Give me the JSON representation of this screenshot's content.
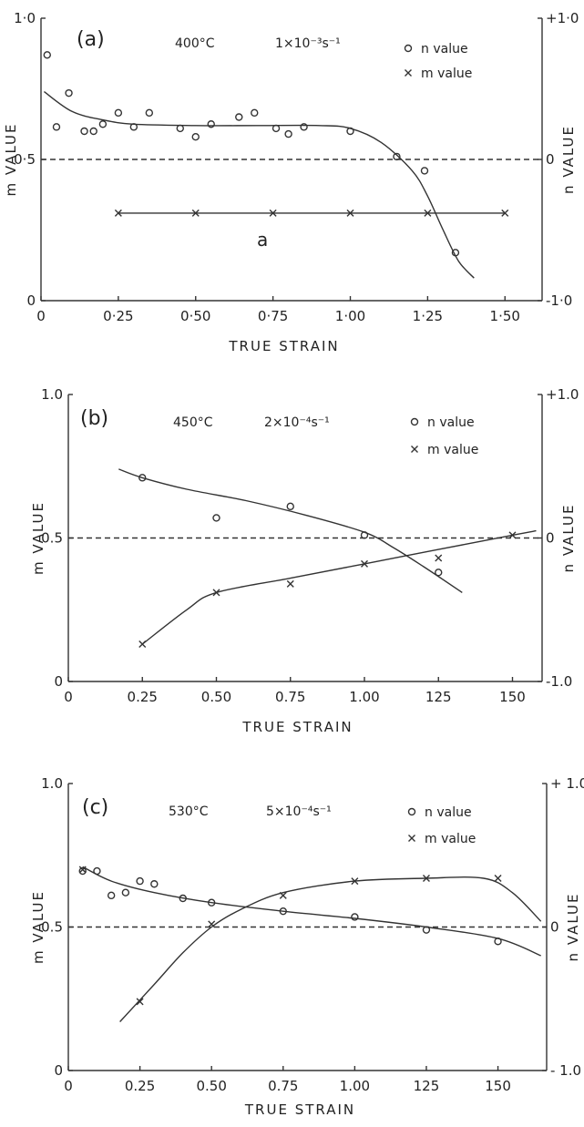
{
  "chart_data": [
    {
      "type": "scatter",
      "panel_label": "(a)",
      "conditions": {
        "temperature": "400°C",
        "strain_rate": "1×10⁻³s⁻¹"
      },
      "xlabel": "TRUE STRAIN",
      "ylabel": "m VALUE",
      "y2label": "n VALUE",
      "xlim": [
        0,
        1.62
      ],
      "ylim": [
        0,
        1.0
      ],
      "y2lim": [
        -1.0,
        1.0
      ],
      "xticks": [
        "0",
        "0·25",
        "0·50",
        "0·75",
        "1·00",
        "1·25",
        "1·50"
      ],
      "xtick_values": [
        0,
        0.25,
        0.5,
        0.75,
        1.0,
        1.25,
        1.5
      ],
      "yticks": [
        "0",
        "0·5",
        "1·0"
      ],
      "y2ticks": [
        "-1·0",
        "0",
        "+1·0"
      ],
      "curve_label": "a",
      "reference_line_y": 0.5,
      "legend": [
        {
          "marker": "o",
          "label": "n  value"
        },
        {
          "marker": "×",
          "label": "m  value"
        }
      ],
      "series": [
        {
          "marker": "o",
          "axis": "n",
          "x": [
            0.02,
            0.05,
            0.09,
            0.14,
            0.17,
            0.2,
            0.25,
            0.3,
            0.35,
            0.45,
            0.5,
            0.55,
            0.64,
            0.69,
            0.76,
            0.8,
            0.85,
            1.0,
            1.15,
            1.24,
            1.34
          ],
          "y": [
            0.74,
            0.23,
            0.47,
            0.2,
            0.2,
            0.25,
            0.33,
            0.23,
            0.33,
            0.22,
            0.16,
            0.25,
            0.3,
            0.33,
            0.22,
            0.18,
            0.23,
            0.2,
            0.02,
            -0.08,
            -0.66
          ]
        },
        {
          "marker": "×",
          "axis": "m",
          "x": [
            0.25,
            0.5,
            0.75,
            1.0,
            1.25,
            1.5
          ],
          "y": [
            0.31,
            0.31,
            0.31,
            0.31,
            0.31,
            0.31
          ]
        }
      ],
      "fit_curves": [
        {
          "axis": "n",
          "x": [
            0.01,
            0.1,
            0.2,
            0.3,
            0.5,
            0.7,
            0.9,
            1.0,
            1.1,
            1.2,
            1.25,
            1.3,
            1.35,
            1.4
          ],
          "y": [
            0.48,
            0.34,
            0.28,
            0.25,
            0.24,
            0.24,
            0.24,
            0.22,
            0.12,
            -0.08,
            -0.26,
            -0.5,
            -0.72,
            -0.84
          ]
        },
        {
          "axis": "m",
          "x": [
            0.25,
            1.5
          ],
          "y": [
            0.31,
            0.31
          ]
        }
      ]
    },
    {
      "type": "scatter",
      "panel_label": "(b)",
      "conditions": {
        "temperature": "450°C",
        "strain_rate": "2×10⁻⁴s⁻¹"
      },
      "xlabel": "TRUE STRAIN",
      "ylabel": "m VALUE",
      "y2label": "n VALUE",
      "xlim": [
        0,
        1.6
      ],
      "ylim": [
        0,
        1.0
      ],
      "y2lim": [
        -1.0,
        1.0
      ],
      "xticks": [
        "0",
        "0.25",
        "0.50",
        "0.75",
        "1.00",
        "125",
        "150"
      ],
      "xtick_values": [
        0,
        0.25,
        0.5,
        0.75,
        1.0,
        1.25,
        1.5
      ],
      "yticks": [
        "0",
        "0.5",
        "1.0"
      ],
      "y2ticks": [
        "-1.0",
        "0",
        "+1.0"
      ],
      "reference_line_y": 0.5,
      "legend": [
        {
          "marker": "o",
          "label": "n  value"
        },
        {
          "marker": "x",
          "label": "m  value"
        }
      ],
      "series": [
        {
          "marker": "o",
          "axis": "n",
          "x": [
            0.25,
            0.5,
            0.75,
            1.0,
            1.25
          ],
          "y": [
            0.42,
            0.14,
            0.22,
            0.02,
            -0.24
          ]
        },
        {
          "marker": "x",
          "axis": "m",
          "x": [
            0.25,
            0.5,
            0.75,
            1.0,
            1.25,
            1.5
          ],
          "y": [
            0.13,
            0.31,
            0.34,
            0.41,
            0.43,
            0.51
          ]
        }
      ],
      "fit_curves": [
        {
          "axis": "n",
          "x": [
            0.17,
            0.25,
            0.4,
            0.6,
            0.8,
            1.0,
            1.1,
            1.2,
            1.33
          ],
          "y": [
            0.48,
            0.42,
            0.34,
            0.26,
            0.16,
            0.04,
            -0.07,
            -0.2,
            -0.38
          ]
        },
        {
          "axis": "m",
          "x": [
            0.25,
            0.4,
            0.5,
            0.75,
            1.0,
            1.25,
            1.5,
            1.58
          ],
          "y": [
            0.13,
            0.25,
            0.31,
            0.36,
            0.41,
            0.46,
            0.51,
            0.525
          ]
        }
      ]
    },
    {
      "type": "scatter",
      "panel_label": "(c)",
      "conditions": {
        "temperature": "530°C",
        "strain_rate": "5×10⁻⁴s⁻¹"
      },
      "xlabel": "TRUE STRAIN",
      "ylabel": "m VALUE",
      "y2label": "n VALUE",
      "xlim": [
        0,
        1.67
      ],
      "ylim": [
        0,
        1.0
      ],
      "y2lim": [
        -1.0,
        1.0
      ],
      "xticks": [
        "0",
        "0.25",
        "0.50",
        "0.75",
        "1.00",
        "125",
        "150"
      ],
      "xtick_values": [
        0,
        0.25,
        0.5,
        0.75,
        1.0,
        1.25,
        1.5
      ],
      "yticks": [
        "0",
        "0.5",
        "1.0"
      ],
      "y2ticks": [
        "- 1.0",
        "0",
        "+ 1.0"
      ],
      "reference_line_y": 0.5,
      "legend": [
        {
          "marker": "o",
          "label": "n  value"
        },
        {
          "marker": "x",
          "label": "m  value"
        }
      ],
      "series": [
        {
          "marker": "o",
          "axis": "n",
          "x": [
            0.05,
            0.1,
            0.15,
            0.2,
            0.25,
            0.3,
            0.4,
            0.5,
            0.75,
            1.0,
            1.25,
            1.5
          ],
          "y": [
            0.39,
            0.39,
            0.22,
            0.24,
            0.32,
            0.3,
            0.2,
            0.17,
            0.11,
            0.07,
            -0.02,
            -0.1
          ]
        },
        {
          "marker": "x",
          "axis": "m",
          "x": [
            0.05,
            0.25,
            0.5,
            0.75,
            1.0,
            1.25,
            1.5
          ],
          "y": [
            0.7,
            0.24,
            0.51,
            0.61,
            0.66,
            0.67,
            0.67
          ]
        }
      ],
      "fit_curves": [
        {
          "axis": "n",
          "x": [
            0.05,
            0.15,
            0.3,
            0.5,
            0.75,
            1.0,
            1.25,
            1.5,
            1.65
          ],
          "y": [
            0.42,
            0.32,
            0.24,
            0.17,
            0.11,
            0.06,
            0.0,
            -0.08,
            -0.2
          ]
        },
        {
          "axis": "m",
          "x": [
            0.18,
            0.3,
            0.4,
            0.5,
            0.6,
            0.75,
            1.0,
            1.25,
            1.45,
            1.55,
            1.65
          ],
          "y": [
            0.17,
            0.3,
            0.41,
            0.5,
            0.56,
            0.62,
            0.66,
            0.67,
            0.67,
            0.62,
            0.52
          ]
        }
      ]
    }
  ]
}
